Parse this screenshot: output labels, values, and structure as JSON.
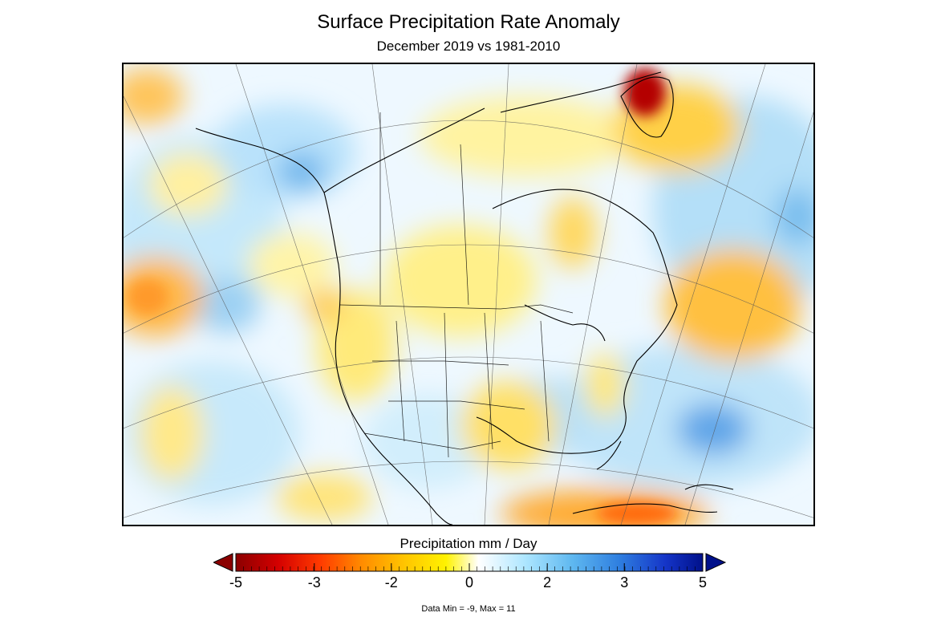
{
  "header": {
    "title": "Surface Precipitation Rate Anomaly",
    "subtitle": "December 2019 vs 1981-2010"
  },
  "colorbar": {
    "title": "Precipitation mm / Day",
    "ticks": [
      "-5",
      "-3",
      "-2",
      "0",
      "2",
      "3",
      "5"
    ],
    "range": [
      -5,
      5
    ],
    "colors": [
      "#8b0000",
      "#d40000",
      "#ff3a00",
      "#ff8c00",
      "#ffc400",
      "#fff200",
      "#ffffff",
      "#ade6ff",
      "#5fb8f0",
      "#2f7fe0",
      "#1535c8",
      "#00108a"
    ],
    "under_color": "#8b0000",
    "over_color": "#00108a"
  },
  "footer": {
    "data_range": "Data Min = -9, Max = 11"
  }
}
